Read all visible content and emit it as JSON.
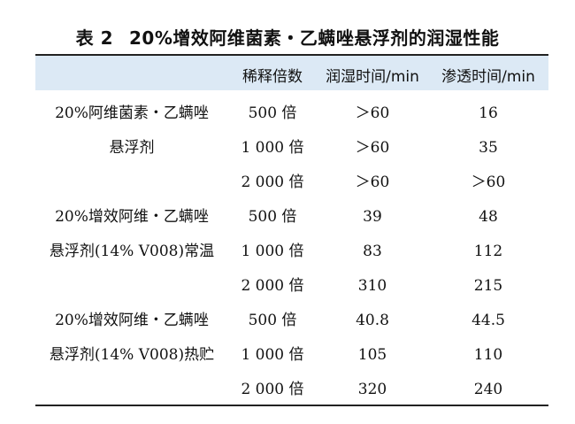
{
  "title": {
    "label": "表 2",
    "text": "20%增效阿维菌素・乙螨唑悬浮剂的润湿性能"
  },
  "columns": [
    "",
    "稀释倍数",
    "润湿时间/min",
    "渗透时间/min"
  ],
  "groups": [
    {
      "name_line1": "20%阿维菌素・乙螨唑",
      "name_line2": "悬浮剂",
      "rows": [
        {
          "dilution": "500 倍",
          "wetting": "＞60",
          "penetration": "16"
        },
        {
          "dilution": "1 000 倍",
          "wetting": "＞60",
          "penetration": "35"
        },
        {
          "dilution": "2 000 倍",
          "wetting": "＞60",
          "penetration": "＞60"
        }
      ]
    },
    {
      "name_line1": "20%增效阿维・乙螨唑",
      "name_line2": "悬浮剂(14% V008)常温",
      "rows": [
        {
          "dilution": "500 倍",
          "wetting": "39",
          "penetration": "48"
        },
        {
          "dilution": "1 000 倍",
          "wetting": "83",
          "penetration": "112"
        },
        {
          "dilution": "2 000 倍",
          "wetting": "310",
          "penetration": "215"
        }
      ]
    },
    {
      "name_line1": "20%增效阿维・乙螨唑",
      "name_line2": "悬浮剂(14% V008)热贮",
      "rows": [
        {
          "dilution": "500 倍",
          "wetting": "40.8",
          "penetration": "44.5"
        },
        {
          "dilution": "1 000 倍",
          "wetting": "105",
          "penetration": "110"
        },
        {
          "dilution": "2 000 倍",
          "wetting": "320",
          "penetration": "240"
        }
      ]
    }
  ]
}
